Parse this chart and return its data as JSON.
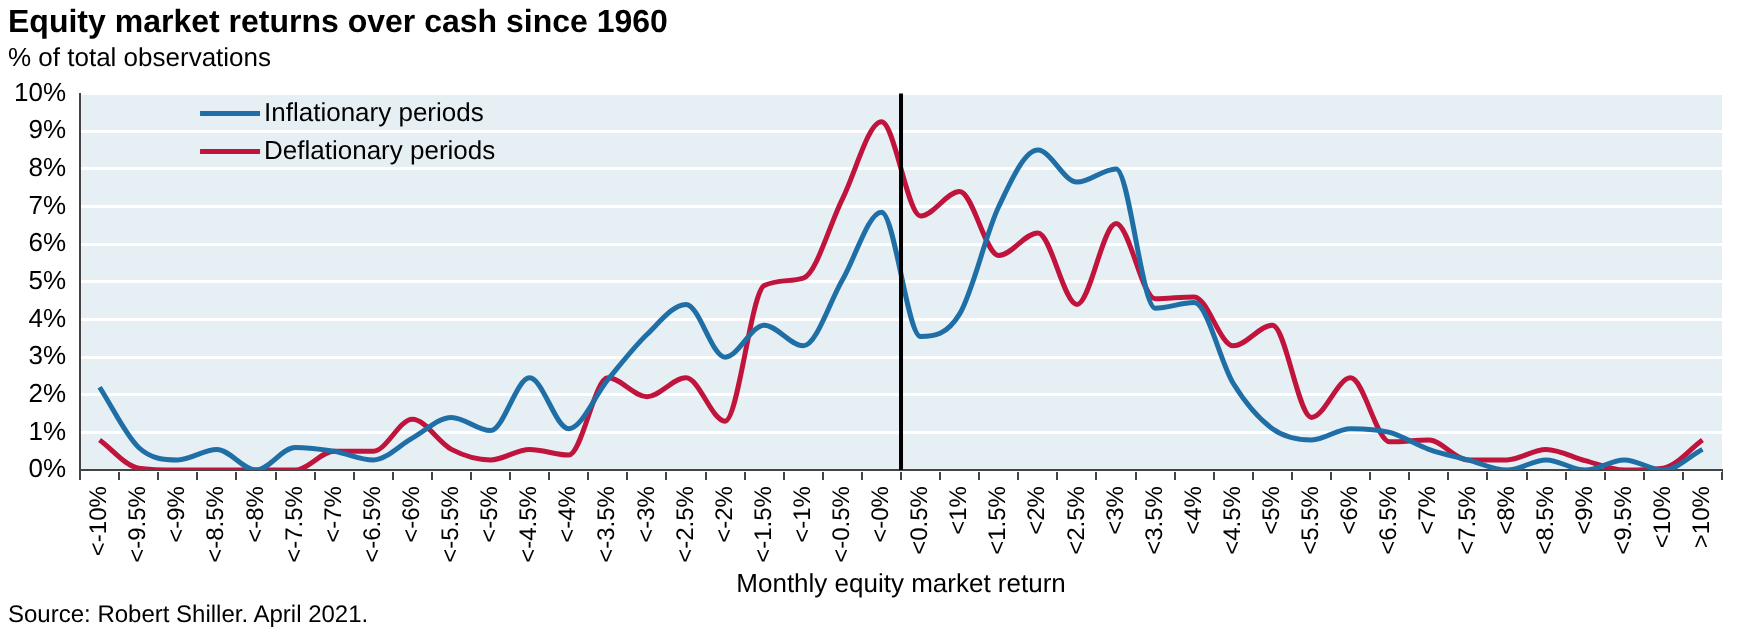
{
  "chart_data": {
    "type": "line",
    "title": "Equity market returns over cash since 1960",
    "subtitle": "% of total observations",
    "xlabel": "Monthly equity market return",
    "annotations": [
      "Source: Robert Shiller. April 2021."
    ],
    "categories": [
      "<-10%",
      "<-9.5%",
      "<-9%",
      "<-8.5%",
      "<-8%",
      "<-7.5%",
      "<-7%",
      "<-6.5%",
      "<-6%",
      "<-5.5%",
      "<-5%",
      "<-4.5%",
      "<-4%",
      "<-3.5%",
      "<-3%",
      "<-2.5%",
      "<-2%",
      "<-1.5%",
      "<-1%",
      "<-0.5%",
      "<-0%",
      "<0.5%",
      "<1%",
      "<1.5%",
      "<2%",
      "<2.5%",
      "<3%",
      "<3.5%",
      "<4%",
      "<4.5%",
      "<5%",
      "<5.5%",
      "<6%",
      "<6.5%",
      "<7%",
      "<7.5%",
      "<8%",
      "<8.5%",
      "<9%",
      "<9.5%",
      "<10%",
      ">10%"
    ],
    "series": [
      {
        "name": "Inflationary periods",
        "color": "#1f6fa6",
        "values": [
          2.2,
          0.6,
          0.27,
          0.55,
          0,
          0.6,
          0.5,
          0.27,
          0.85,
          1.4,
          1.05,
          2.45,
          1.1,
          2.4,
          3.6,
          4.4,
          3.0,
          3.85,
          3.3,
          5.05,
          6.85,
          3.55,
          4.15,
          7.0,
          8.5,
          7.65,
          8.0,
          4.3,
          4.45,
          2.3,
          1.1,
          0.8,
          1.1,
          1.0,
          0.55,
          0.27,
          0,
          0.27,
          0,
          0.27,
          0,
          0.55
        ]
      },
      {
        "name": "Deflationary periods",
        "color": "#c0143c",
        "values": [
          0.8,
          0.05,
          0,
          0,
          0,
          0,
          0.5,
          0.5,
          1.35,
          0.55,
          0.27,
          0.55,
          0.4,
          2.45,
          1.95,
          2.45,
          1.3,
          4.9,
          5.1,
          7.2,
          9.25,
          6.75,
          7.4,
          5.7,
          6.3,
          4.4,
          6.55,
          4.55,
          4.6,
          3.3,
          3.85,
          1.4,
          2.45,
          0.75,
          0.8,
          0.27,
          0.27,
          0.55,
          0.25,
          0,
          0.05,
          0.8
        ]
      }
    ],
    "ylim": [
      0,
      10
    ],
    "yticks": [
      {
        "value": 0,
        "label": "0%"
      },
      {
        "value": 1,
        "label": "1%"
      },
      {
        "value": 2,
        "label": "2%"
      },
      {
        "value": 3,
        "label": "3%"
      },
      {
        "value": 4,
        "label": "4%"
      },
      {
        "value": 5,
        "label": "5%"
      },
      {
        "value": 6,
        "label": "6%"
      },
      {
        "value": 7,
        "label": "7%"
      },
      {
        "value": 8,
        "label": "8%"
      },
      {
        "value": 9,
        "label": "9%"
      },
      {
        "value": 10,
        "label": "10%"
      }
    ],
    "ref_lines": [
      {
        "axis": "x",
        "value": "<-0%",
        "color": "#000000"
      }
    ],
    "grid": "y",
    "legend": "top left",
    "marker": "none",
    "line_style": "solid"
  }
}
